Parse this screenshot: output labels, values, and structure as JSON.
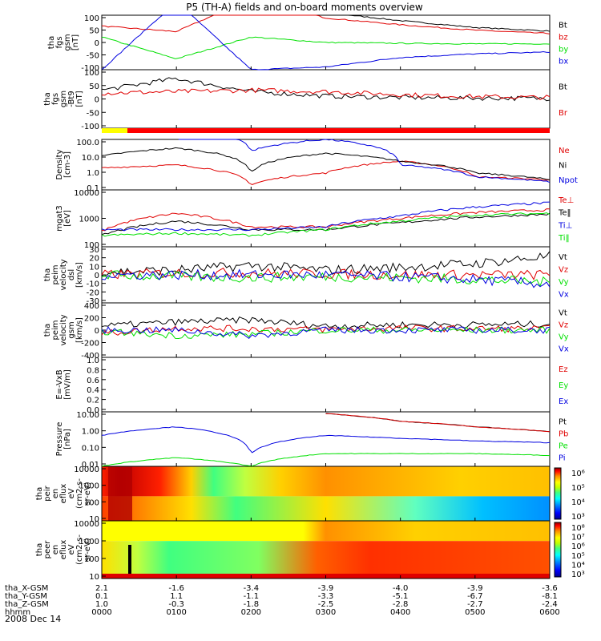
{
  "title": "P5 (TH-A) fields and on-board moments overview",
  "date_label": "2008 Dec 14",
  "colors": {
    "black": "#000000",
    "red": "#e00000",
    "green": "#00e000",
    "blue": "#0000e0",
    "cbar": [
      "#000090",
      "#0000ff",
      "#0090ff",
      "#00ffff",
      "#40ff80",
      "#c0ff00",
      "#ffff00",
      "#ff9000",
      "#ff0000",
      "#900000"
    ]
  },
  "panels": [
    {
      "ylabel": [
        "tha",
        "fgs",
        "gsm",
        "[nT]"
      ],
      "ticks": [
        "100",
        "50",
        "0",
        "-50",
        "-100"
      ],
      "legend": [
        [
          "Bt",
          "black"
        ],
        [
          "bz",
          "red"
        ],
        [
          "by",
          "green"
        ],
        [
          "bx",
          "blue"
        ]
      ]
    },
    {
      "ylabel": [
        "tha",
        "fgs",
        "gsm",
        "-Bt9",
        "[nT]"
      ],
      "ticks": [
        "100",
        "50",
        "0",
        "-50",
        "-100"
      ],
      "legend": [
        [
          "Bt",
          "black"
        ],
        [
          "Br",
          "red"
        ]
      ]
    },
    {
      "ylabel": [
        "Density",
        "[cm-3]"
      ],
      "ticks": [
        "100.0",
        "10.0",
        "1.0",
        "0.1"
      ],
      "legend": [
        [
          "Ne",
          "red"
        ],
        [
          "Ni",
          "black"
        ],
        [
          "Npot",
          "blue"
        ]
      ]
    },
    {
      "ylabel": [
        "mgat3",
        "[eV]"
      ],
      "ticks": [
        "10000",
        "1000",
        "100"
      ],
      "legend": [
        [
          "Te⊥",
          "red"
        ],
        [
          "Te‖",
          "black"
        ],
        [
          "Ti⊥",
          "blue"
        ],
        [
          "Ti‖",
          "green"
        ]
      ]
    },
    {
      "ylabel": [
        "tha",
        "peim",
        "velocity",
        "dsl",
        "[km/s]"
      ],
      "ticks": [
        "30",
        "20",
        "10",
        "0",
        "-10",
        "-20",
        "-30"
      ],
      "legend": [
        [
          "Vt",
          "black"
        ],
        [
          "Vz",
          "red"
        ],
        [
          "Vy",
          "green"
        ],
        [
          "Vx",
          "blue"
        ]
      ]
    },
    {
      "ylabel": [
        "tha",
        "peim",
        "velocity",
        "gsm",
        "[km/s]"
      ],
      "ticks": [
        "400",
        "200",
        "0",
        "-200",
        "-400"
      ],
      "legend": [
        [
          "Vt",
          "black"
        ],
        [
          "Vz",
          "red"
        ],
        [
          "Vy",
          "green"
        ],
        [
          "Vx",
          "blue"
        ]
      ]
    },
    {
      "ylabel": [
        "E=-VxB",
        "[mV/m]"
      ],
      "ticks": [
        "1.0",
        "0.8",
        "0.6",
        "0.4",
        "0.2",
        "0.0"
      ],
      "legend": [
        [
          "Ez",
          "red"
        ],
        [
          "Ey",
          "green"
        ],
        [
          "Ex",
          "blue"
        ]
      ]
    },
    {
      "ylabel": [
        "Pressure",
        "[nPa]"
      ],
      "ticks": [
        "10.00",
        "1.00",
        "0.10",
        "0.01"
      ],
      "legend": [
        [
          "Pt",
          "black"
        ],
        [
          "Pb",
          "red"
        ],
        [
          "Pe",
          "green"
        ],
        [
          "Pi",
          "blue"
        ]
      ]
    },
    {
      "ylabel": [
        "tha",
        "peir",
        "en",
        "eflux",
        "eV",
        "(cm2-s-",
        "sr-eV)"
      ],
      "ticks": [
        "10000",
        "1000",
        "100",
        "10"
      ],
      "cbar": [
        "10⁶",
        "10⁵",
        "10⁴",
        "10³"
      ]
    },
    {
      "ylabel": [
        "tha",
        "peer",
        "en",
        "eflux",
        "eV",
        "(cm2-s-",
        "sr-eV)"
      ],
      "ticks": [
        "10000",
        "1000",
        "100",
        "10"
      ],
      "cbar": [
        "10⁸",
        "10⁷",
        "10⁶",
        "10⁵",
        "10⁴",
        "10³"
      ]
    }
  ],
  "xaxis": {
    "row_labels": [
      "tha_X-GSM",
      "tha_Y-GSM",
      "tha_Z-GSM",
      "hhmm"
    ],
    "columns": [
      [
        "2.1",
        "0.1",
        "1.0",
        "0000"
      ],
      [
        "-1.6",
        "1.1",
        "-0.3",
        "0100"
      ],
      [
        "-3.4",
        "-1.1",
        "-1.8",
        "0200"
      ],
      [
        "-3.9",
        "-3.3",
        "-2.5",
        "0300"
      ],
      [
        "-4.0",
        "-5.1",
        "-2.8",
        "0400"
      ],
      [
        "-3.9",
        "-6.7",
        "-2.7",
        "0500"
      ],
      [
        "-3.6",
        "-8.1",
        "-2.4",
        "0600"
      ]
    ]
  },
  "chart_data": {
    "type": "line",
    "title": "P5 (TH-A) fields and on-board moments overview",
    "x": [
      "0000",
      "0100",
      "0200",
      "0300",
      "0400",
      "0500",
      "0600"
    ],
    "panels": [
      {
        "name": "fgs gsm [nT]",
        "ylim": [
          -100,
          100
        ],
        "series": [
          {
            "name": "Bt",
            "values": [
              200,
              100,
              150,
              110,
              80,
              55,
              42
            ]
          },
          {
            "name": "bz",
            "values": [
              60,
              40,
              160,
              90,
              65,
              45,
              33
            ]
          },
          {
            "name": "by",
            "values": [
              20,
              -60,
              20,
              0,
              -3,
              -5,
              -5
            ]
          },
          {
            "name": "bx",
            "values": [
              -100,
              150,
              -100,
              -90,
              -55,
              -42,
              -35
            ]
          }
        ]
      },
      {
        "name": "fgs gsm -Bt9 [nT]",
        "ylim": [
          -100,
          100
        ],
        "series": [
          {
            "name": "Bt",
            "values": [
              30,
              70,
              25,
              10,
              5,
              3,
              2
            ]
          },
          {
            "name": "Br",
            "values": [
              20,
              25,
              30,
              25,
              15,
              8,
              5
            ]
          }
        ]
      },
      {
        "name": "Density [cm-3]",
        "ylim": [
          0.1,
          100
        ],
        "log": true,
        "series": [
          {
            "name": "Ne",
            "values": [
              2,
              3,
              0.2,
              1,
              5,
              0.6,
              0.4
            ]
          },
          {
            "name": "Ni",
            "values": [
              10,
              30,
              1,
              15,
              5,
              1,
              0.4
            ]
          },
          {
            "name": "Npot",
            "values": [
              null,
              500,
              20,
              100,
              3,
              0.6,
              0.3
            ]
          }
        ]
      },
      {
        "name": "mgat3 [eV]",
        "ylim": [
          100,
          10000
        ],
        "log": true,
        "series": [
          {
            "name": "Te⊥",
            "values": [
              350,
              1500,
              500,
              500,
              1000,
              1600,
              2000
            ]
          },
          {
            "name": "Te‖",
            "values": [
              250,
              800,
              400,
              400,
              700,
              1100,
              1400
            ]
          },
          {
            "name": "Ti⊥",
            "values": [
              400,
              400,
              400,
              500,
              1200,
              2500,
              3500
            ]
          },
          {
            "name": "Ti‖",
            "values": [
              250,
              300,
              250,
              400,
              800,
              1300,
              1500
            ]
          }
        ]
      },
      {
        "name": "peim velocity dsl [km/s]",
        "ylim": [
          -30,
          30
        ],
        "series": [
          {
            "name": "Vt",
            "values": [
              3,
              5,
              10,
              5,
              8,
              12,
              20
            ]
          },
          {
            "name": "Vz",
            "values": [
              0,
              2,
              2,
              1,
              0,
              0,
              0
            ]
          },
          {
            "name": "Vy",
            "values": [
              0,
              -2,
              -3,
              -2,
              -3,
              -5,
              -8
            ]
          },
          {
            "name": "Vx",
            "values": [
              0,
              0,
              0,
              0,
              -2,
              -5,
              -10
            ]
          }
        ]
      },
      {
        "name": "peim velocity gsm [km/s]",
        "ylim": [
          -400,
          400
        ],
        "series": [
          {
            "name": "Vt",
            "values": [
              60,
              120,
              150,
              60,
              80,
              80,
              90
            ]
          },
          {
            "name": "Vz",
            "values": [
              -50,
              30,
              20,
              10,
              30,
              20,
              20
            ]
          },
          {
            "name": "Vy",
            "values": [
              -20,
              -80,
              -60,
              0,
              0,
              0,
              0
            ]
          },
          {
            "name": "Vx",
            "values": [
              0,
              0,
              -80,
              0,
              0,
              0,
              0
            ]
          }
        ]
      },
      {
        "name": "E=-VxB [mV/m]",
        "ylim": [
          0.0,
          1.0
        ],
        "series": []
      },
      {
        "name": "Pressure [nPa]",
        "ylim": [
          0.01,
          10
        ],
        "log": true,
        "series": [
          {
            "name": "Pt",
            "values": [
              null,
              null,
              null,
              8,
              3,
              1.5,
              0.8
            ]
          },
          {
            "name": "Pb",
            "values": [
              null,
              null,
              null,
              8,
              3,
              1.5,
              0.8
            ]
          },
          {
            "name": "Pe",
            "values": [
              0.01,
              0.03,
              0.01,
              0.05,
              0.05,
              0.05,
              0.04
            ]
          },
          {
            "name": "Pi",
            "values": [
              0.5,
              1.5,
              0.05,
              0.5,
              0.35,
              0.25,
              0.2
            ]
          }
        ]
      }
    ],
    "spectrograms": [
      {
        "name": "peir en eflux",
        "ylim": [
          10,
          20000
        ],
        "log": true,
        "colorbar_ticks": [
          "10³",
          "10⁴",
          "10⁵",
          "10⁶"
        ]
      },
      {
        "name": "peer en eflux",
        "ylim": [
          10,
          20000
        ],
        "log": true,
        "colorbar_ticks": [
          "10³",
          "10⁴",
          "10⁵",
          "10⁶",
          "10⁷",
          "10⁸"
        ]
      }
    ]
  }
}
